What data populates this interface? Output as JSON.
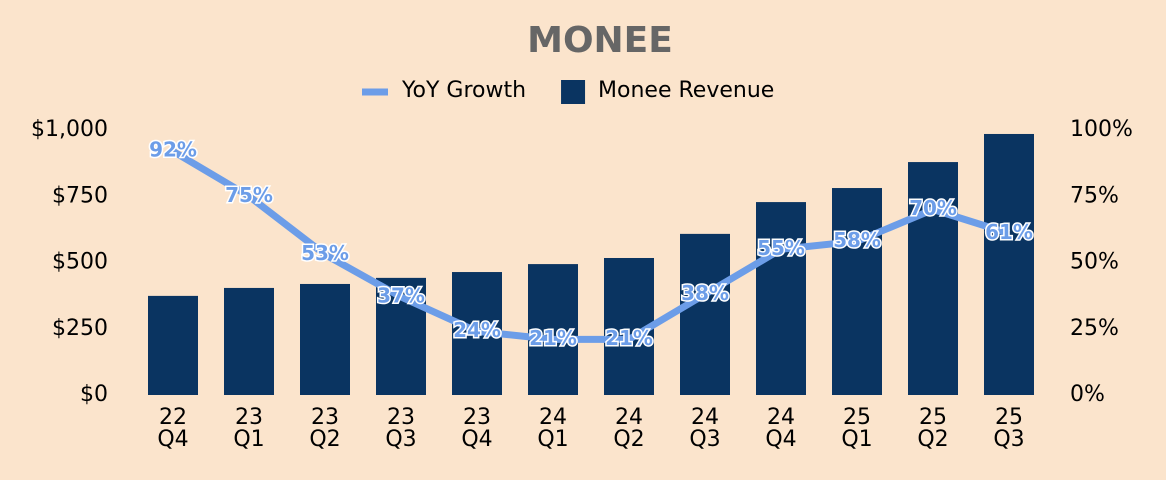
{
  "chart_data": {
    "type": "bar+line",
    "title": "MONEE",
    "categories": [
      [
        "22",
        "Q4"
      ],
      [
        "23",
        "Q1"
      ],
      [
        "23",
        "Q2"
      ],
      [
        "23",
        "Q3"
      ],
      [
        "23",
        "Q4"
      ],
      [
        "24",
        "Q1"
      ],
      [
        "24",
        "Q2"
      ],
      [
        "24",
        "Q3"
      ],
      [
        "24",
        "Q4"
      ],
      [
        "25",
        "Q1"
      ],
      [
        "25",
        "Q2"
      ],
      [
        "25",
        "Q3"
      ]
    ],
    "series": [
      {
        "name": "YoY Growth",
        "type": "line",
        "axis": "y2",
        "color": "#6c9de8",
        "values": [
          92,
          75,
          53,
          37,
          24,
          21,
          21,
          38,
          55,
          58,
          70,
          61
        ],
        "value_labels": [
          "92%",
          "75%",
          "53%",
          "37%",
          "24%",
          "21%",
          "21%",
          "38%",
          "55%",
          "58%",
          "70%",
          "61%"
        ]
      },
      {
        "name": "Monee Revenue",
        "type": "bar",
        "color": "#0a3461",
        "values": [
          374,
          404,
          419,
          442,
          464,
          494,
          517,
          608,
          728,
          781,
          879,
          985
        ]
      }
    ],
    "ylim": [
      0,
      1000
    ],
    "yticks": [
      {
        "value": 0,
        "label": "$0"
      },
      {
        "value": 250,
        "label": "$250"
      },
      {
        "value": 500,
        "label": "$500"
      },
      {
        "value": 750,
        "label": "$750"
      },
      {
        "value": 1000,
        "label": "$1,000"
      }
    ],
    "y2lim": [
      0,
      100
    ],
    "y2ticks": [
      {
        "value": 0,
        "label": "0%"
      },
      {
        "value": 25,
        "label": "25%"
      },
      {
        "value": 50,
        "label": "50%"
      },
      {
        "value": 75,
        "label": "75%"
      },
      {
        "value": 100,
        "label": "100%"
      }
    ],
    "legend": "top"
  }
}
